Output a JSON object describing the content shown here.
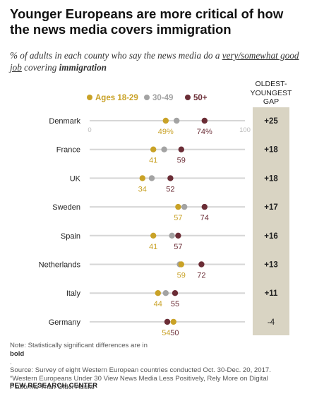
{
  "header": {
    "title": "Younger Europeans are more critical of how the news media covers immigration",
    "subtitle_pre": "% of adults in each county who say the news media do a ",
    "subtitle_underlined": "very/somewhat good job",
    "subtitle_mid": " covering ",
    "subtitle_bold": "immigration"
  },
  "gap_column": {
    "header_line1": "OLDEST-",
    "header_line2": "YOUNGEST",
    "header_line3": "GAP"
  },
  "colors": {
    "ages_18_29": "#c9a227",
    "ages_30_49": "#a3a3a3",
    "ages_50_plus": "#6b2d36",
    "track": "#d6d6d6",
    "gap_band": "#d9d4c3"
  },
  "chart_data": {
    "type": "scatter",
    "subtype": "dot-plot",
    "xlim": [
      0,
      100
    ],
    "axis_tick_labels": [
      "0",
      "100"
    ],
    "categories": [
      "Denmark",
      "France",
      "UK",
      "Sweden",
      "Spain",
      "Netherlands",
      "Italy",
      "Germany"
    ],
    "series": [
      {
        "name": "Ages 18-29",
        "values": [
          49,
          41,
          34,
          57,
          41,
          59,
          44,
          54
        ],
        "labels": [
          "49%",
          "41",
          "34",
          "57",
          "41",
          "59",
          "44",
          "54"
        ]
      },
      {
        "name": "30-49",
        "values": [
          56,
          48,
          40,
          61,
          53,
          58,
          49,
          50
        ]
      },
      {
        "name": "50+",
        "values": [
          74,
          59,
          52,
          74,
          57,
          72,
          55,
          50
        ],
        "labels": [
          "74%",
          "59",
          "52",
          "74",
          "57",
          "72",
          "55",
          "50"
        ]
      }
    ],
    "gap": [
      "+25",
      "+18",
      "+18",
      "+17",
      "+16",
      "+13",
      "+11",
      "-4"
    ],
    "legend_placement": "top"
  },
  "footer": {
    "note_pre": "Note: Statistically significant differences are in ",
    "note_bold": "bold",
    "note_post": ".",
    "source_line1": "Source: Survey of eight Western European countries conducted Oct. 30-Dec. 20, 2017.",
    "source_line2": "“Western Europeans Under 30 View News Media Less Positively, Rely More on Digital",
    "source_line3": "Platforms Than Older Adults”",
    "brand": "PEW RESEARCH CENTER"
  }
}
